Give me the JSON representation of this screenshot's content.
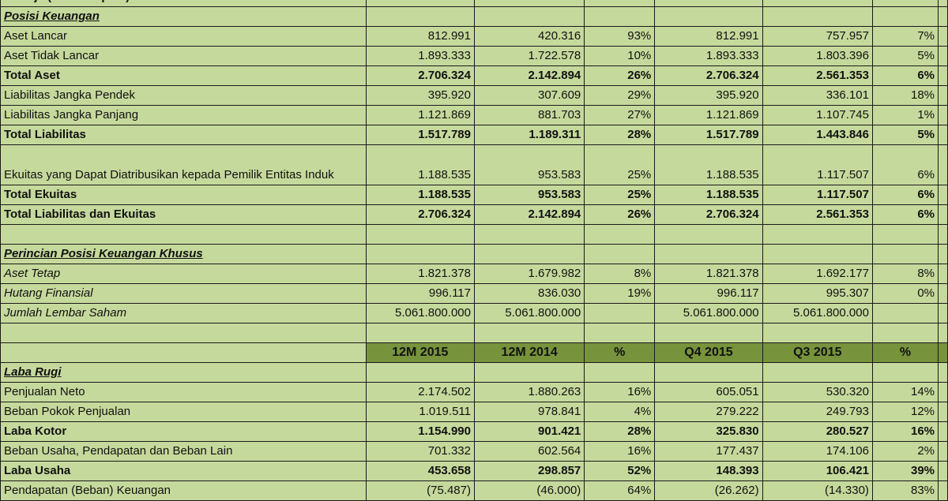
{
  "title_row": "Kinerja (Miliar Rupiah)",
  "columns": [
    "12M 2015",
    "12M 2014",
    "%",
    "Q4 2015",
    "Q3 2015",
    "%"
  ],
  "rows": [
    {
      "label": "Posisi Keuangan",
      "style": "sec",
      "values": [
        "",
        "",
        "",
        "",
        "",
        ""
      ]
    },
    {
      "label": "Aset Lancar",
      "style": "",
      "values": [
        "812.991",
        "420.316",
        "93%",
        "812.991",
        "757.957",
        "7%"
      ]
    },
    {
      "label": "Aset Tidak Lancar",
      "style": "",
      "values": [
        "1.893.333",
        "1.722.578",
        "10%",
        "1.893.333",
        "1.803.396",
        "5%"
      ]
    },
    {
      "label": "Total Aset",
      "style": "b",
      "values": [
        "2.706.324",
        "2.142.894",
        "26%",
        "2.706.324",
        "2.561.353",
        "6%"
      ]
    },
    {
      "label": "Liabilitas Jangka Pendek",
      "style": "",
      "values": [
        "395.920",
        "307.609",
        "29%",
        "395.920",
        "336.101",
        "18%"
      ]
    },
    {
      "label": "Liabilitas Jangka Panjang",
      "style": "",
      "values": [
        "1.121.869",
        "881.703",
        "27%",
        "1.121.869",
        "1.107.745",
        "1%"
      ]
    },
    {
      "label": "Total Liabilitas",
      "style": "b",
      "values": [
        "1.517.789",
        "1.189.311",
        "28%",
        "1.517.789",
        "1.443.846",
        "5%"
      ]
    },
    {
      "label": "Ekuitas yang Dapat Diatribusikan kepada Pemilik Entitas Induk",
      "style": "dbl",
      "values": [
        "1.188.535",
        "953.583",
        "25%",
        "1.188.535",
        "1.117.507",
        "6%"
      ]
    },
    {
      "label": "Total Ekuitas",
      "style": "b",
      "values": [
        "1.188.535",
        "953.583",
        "25%",
        "1.188.535",
        "1.117.507",
        "6%"
      ]
    },
    {
      "label": "Total Liabilitas dan Ekuitas",
      "style": "b",
      "values": [
        "2.706.324",
        "2.142.894",
        "26%",
        "2.706.324",
        "2.561.353",
        "6%"
      ]
    },
    {
      "label": "",
      "style": "",
      "values": [
        "",
        "",
        "",
        "",
        "",
        ""
      ]
    },
    {
      "label": "Perincian Posisi Keuangan Khusus",
      "style": "sec",
      "values": [
        "",
        "",
        "",
        "",
        "",
        ""
      ]
    },
    {
      "label": "Aset Tetap",
      "style": "sub",
      "values": [
        "1.821.378",
        "1.679.982",
        "8%",
        "1.821.378",
        "1.692.177",
        "8%"
      ]
    },
    {
      "label": "Hutang Finansial",
      "style": "sub",
      "values": [
        "996.117",
        "836.030",
        "19%",
        "996.117",
        "995.307",
        "0%"
      ]
    },
    {
      "label": "Jumlah Lembar Saham",
      "style": "sub",
      "values": [
        "5.061.800.000",
        "5.061.800.000",
        "",
        "5.061.800.000",
        "5.061.800.000",
        ""
      ]
    },
    {
      "label": "",
      "style": "",
      "values": [
        "",
        "",
        "",
        "",
        "",
        ""
      ]
    },
    {
      "label": "",
      "style": "hdr",
      "values": [
        "12M 2015",
        "12M 2014",
        "%",
        "Q4 2015",
        "Q3 2015",
        "%"
      ]
    },
    {
      "label": "Laba Rugi",
      "style": "sec",
      "values": [
        "",
        "",
        "",
        "",
        "",
        ""
      ]
    },
    {
      "label": "Penjualan Neto",
      "style": "",
      "values": [
        "2.174.502",
        "1.880.263",
        "16%",
        "605.051",
        "530.320",
        "14%"
      ]
    },
    {
      "label": "Beban Pokok Penjualan",
      "style": "",
      "values": [
        "1.019.511",
        "978.841",
        "4%",
        "279.222",
        "249.793",
        "12%"
      ]
    },
    {
      "label": "Laba Kotor",
      "style": "b",
      "values": [
        "1.154.990",
        "901.421",
        "28%",
        "325.830",
        "280.527",
        "16%"
      ]
    },
    {
      "label": "Beban Usaha, Pendapatan dan Beban Lain",
      "style": "",
      "values": [
        "701.332",
        "602.564",
        "16%",
        "177.437",
        "174.106",
        "2%"
      ]
    },
    {
      "label": "Laba Usaha",
      "style": "b",
      "values": [
        "453.658",
        "298.857",
        "52%",
        "148.393",
        "106.421",
        "39%"
      ]
    },
    {
      "label": "Pendapatan (Beban) Keuangan",
      "style": "",
      "values": [
        "(75.487)",
        "(46.000)",
        "64%",
        "(26.262)",
        "(14.330)",
        "83%"
      ]
    }
  ],
  "colors": {
    "cell_bg": "#c6d99c",
    "header_bg": "#77933c",
    "border": "#1a1a1a"
  }
}
